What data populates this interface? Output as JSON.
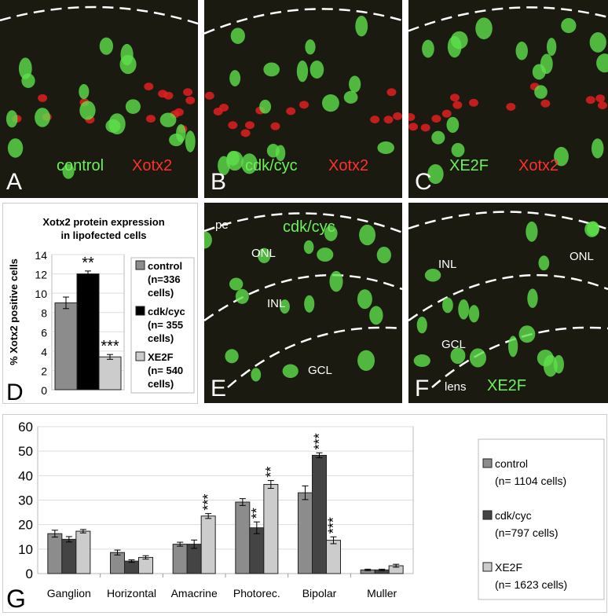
{
  "panels": {
    "A": {
      "letter": "A",
      "green_label": "control",
      "red_label": "Xotx2"
    },
    "B": {
      "letter": "B",
      "green_label": "cdk/cyc",
      "red_label": "Xotx2"
    },
    "C": {
      "letter": "C",
      "green_label": "XE2F",
      "red_label": "Xotx2"
    },
    "E": {
      "letter": "E",
      "title": "cdk/cyc",
      "layers": [
        "pe",
        "ONL",
        "INL",
        "GCL"
      ]
    },
    "F": {
      "letter": "F",
      "title": "XE2F",
      "layers": [
        "INL",
        "ONL",
        "GCL",
        "lens"
      ]
    },
    "D": {
      "letter": "D"
    },
    "G": {
      "letter": "G"
    }
  },
  "colors": {
    "control": "#8c8c8c",
    "cdk_cyc": "#000000",
    "cdk_cyc_G": "#444444",
    "XE2F": "#cccccc",
    "green_stain": "#6ef05a",
    "red_stain": "#ff3030"
  },
  "chart_data": [
    {
      "type": "bar",
      "panel": "D",
      "title": "Xotx2 protein expression in lipofected cells",
      "title_lines": [
        "Xotx2 protein expression",
        "in lipofected cells"
      ],
      "ylabel": "% Xotx2 positive cells",
      "ylim": [
        0,
        14
      ],
      "yticks": [
        0,
        2,
        4,
        6,
        8,
        10,
        12,
        14
      ],
      "grid": true,
      "legend_placement": "right",
      "series": [
        {
          "name": "control",
          "legend": [
            "control",
            "(n=336",
            "cells)"
          ],
          "value": 9.0,
          "error": 0.6,
          "significance": ""
        },
        {
          "name": "cdk/cyc",
          "legend": [
            "cdk/cyc",
            "(n= 355",
            "cells)"
          ],
          "value": 12.0,
          "error": 0.3,
          "significance": "**"
        },
        {
          "name": "XE2F",
          "legend": [
            "XE2F",
            "(n= 540",
            "cells)"
          ],
          "value": 3.4,
          "error": 0.25,
          "significance": "***"
        }
      ]
    },
    {
      "type": "bar",
      "panel": "G",
      "categories": [
        "Ganglion",
        "Horizontal",
        "Amacrine",
        "Photorec.",
        "Bipolar",
        "Muller"
      ],
      "ylim": [
        0,
        60
      ],
      "yticks": [
        0,
        10,
        20,
        30,
        40,
        50,
        60
      ],
      "grid": true,
      "legend_placement": "right",
      "series": [
        {
          "name": "control",
          "legend": [
            "control",
            "(n= 1104 cells)"
          ],
          "values": [
            16.3,
            8.6,
            12.0,
            29.2,
            33.0,
            1.5
          ],
          "errors": [
            1.4,
            1.0,
            0.8,
            1.4,
            2.8,
            0.3
          ],
          "significance": [
            "",
            "",
            "",
            "",
            "",
            ""
          ]
        },
        {
          "name": "cdk/cyc",
          "legend": [
            "cdk/cyc",
            "(n=797 cells)"
          ],
          "values": [
            14.0,
            5.1,
            12.0,
            18.7,
            48.3,
            1.5
          ],
          "errors": [
            1.1,
            0.5,
            1.7,
            2.4,
            1.0,
            0.3
          ],
          "significance": [
            "",
            "",
            "",
            "**",
            "***",
            ""
          ]
        },
        {
          "name": "XE2F",
          "legend": [
            "XE2F",
            "(n= 1623 cells)"
          ],
          "values": [
            17.3,
            6.6,
            23.5,
            36.4,
            13.6,
            3.2
          ],
          "errors": [
            0.7,
            0.7,
            1.0,
            1.6,
            1.4,
            0.6
          ],
          "significance": [
            "",
            "",
            "***",
            "**",
            "***",
            ""
          ]
        }
      ]
    }
  ]
}
